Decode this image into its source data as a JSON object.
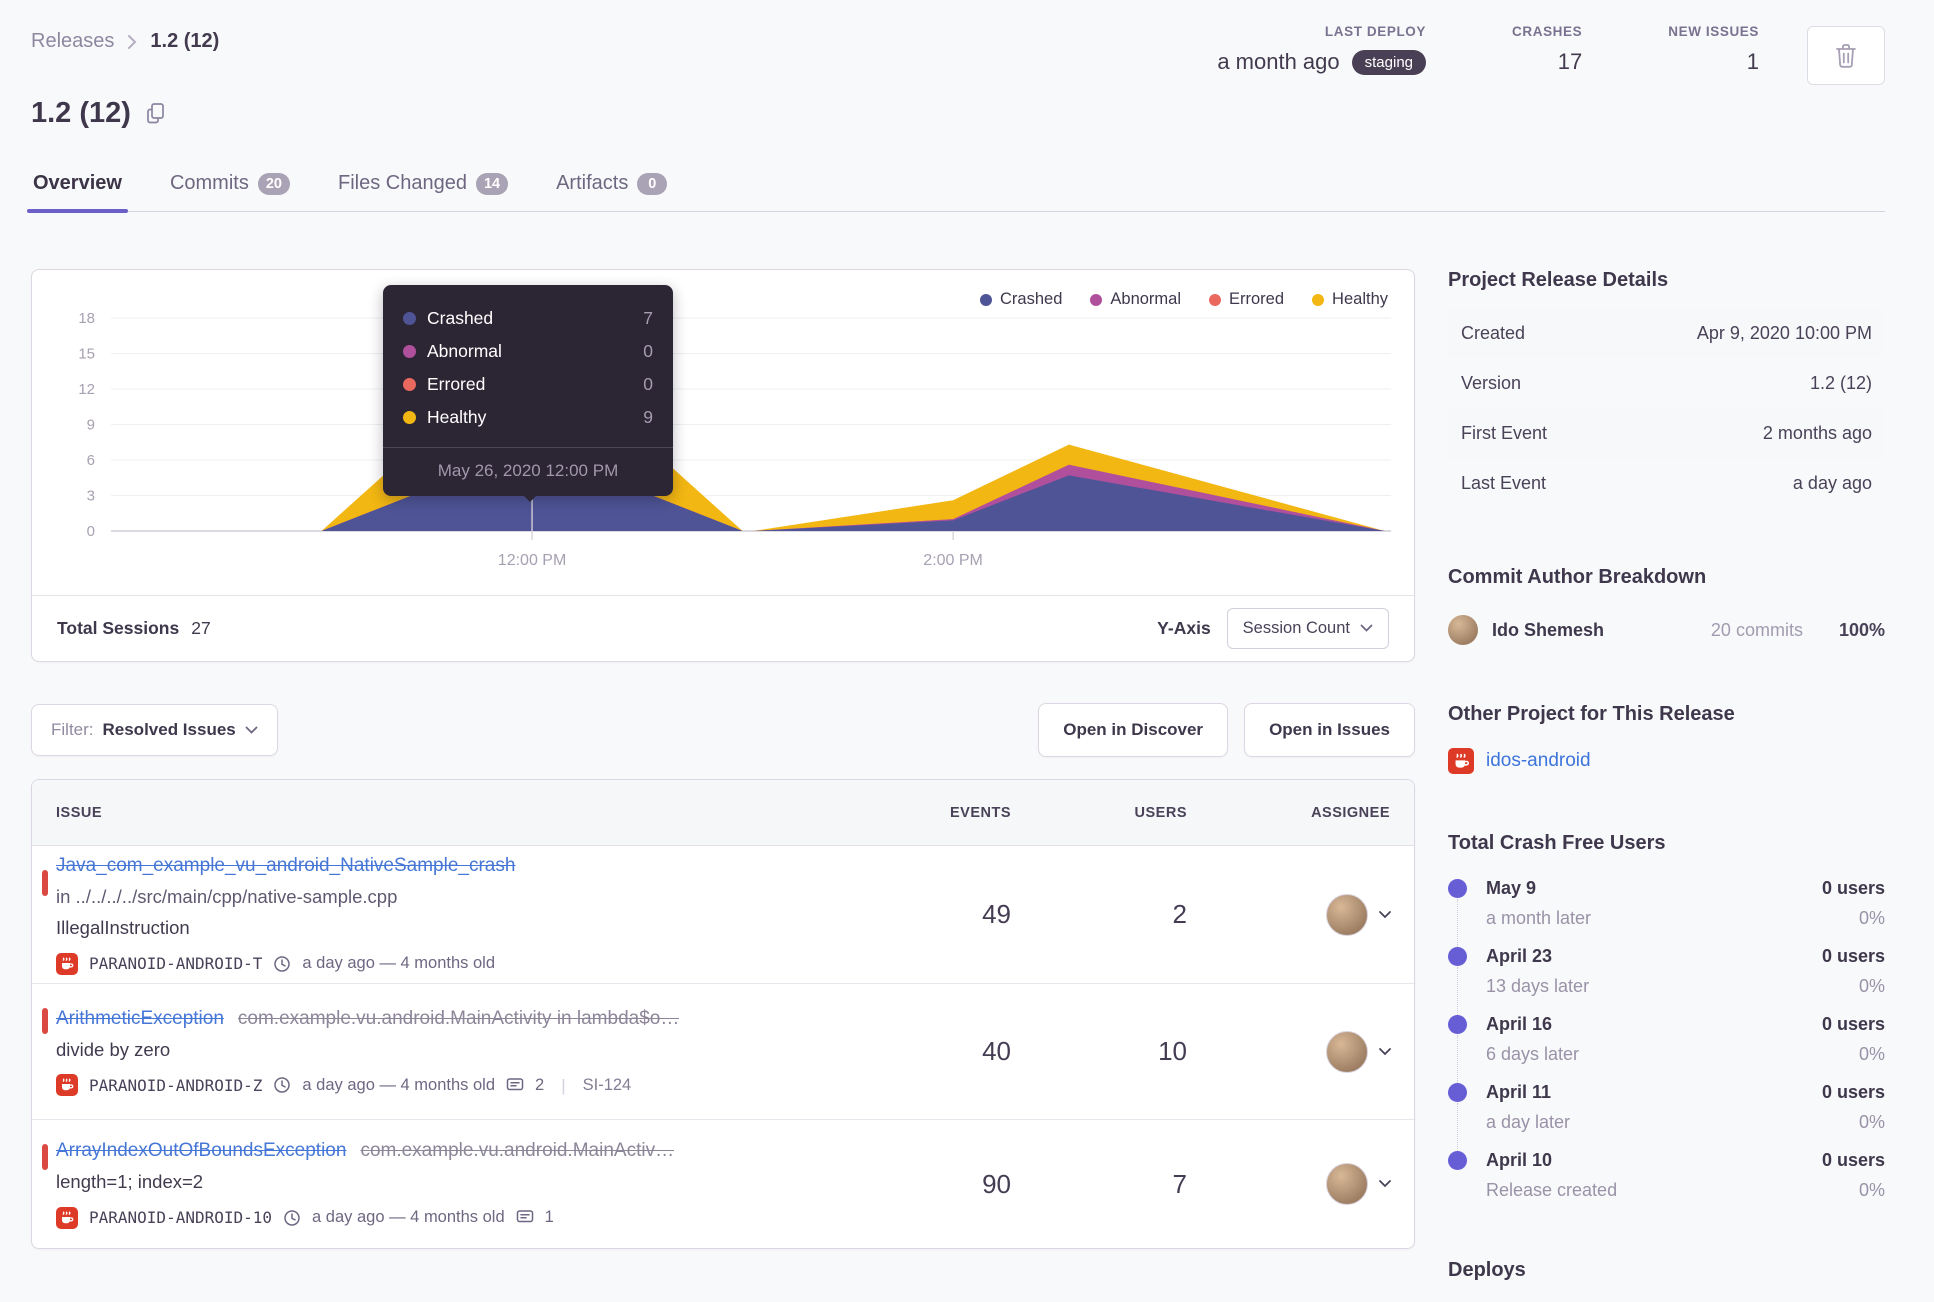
{
  "colors": {
    "accent": "#6c5fc7",
    "link": "#3d74db",
    "danger": "#db4a42",
    "staging_badge_bg": "#4a4055"
  },
  "breadcrumb": {
    "parent": "Releases",
    "current": "1.2 (12)"
  },
  "header_stats": {
    "last_deploy": {
      "label": "LAST DEPLOY",
      "value": "a month ago",
      "badge": "staging"
    },
    "crashes": {
      "label": "CRASHES",
      "value": "17"
    },
    "new_issues": {
      "label": "NEW ISSUES",
      "value": "1"
    }
  },
  "page_title": "1.2 (12)",
  "tabs": [
    {
      "label": "Overview",
      "active": true
    },
    {
      "label": "Commits",
      "badge": "20"
    },
    {
      "label": "Files Changed",
      "badge": "14"
    },
    {
      "label": "Artifacts",
      "badge": "0"
    }
  ],
  "chart_card": {
    "tooltip": {
      "rows": [
        {
          "label": "Crashed",
          "value": "7"
        },
        {
          "label": "Abnormal",
          "value": "0"
        },
        {
          "label": "Errored",
          "value": "0"
        },
        {
          "label": "Healthy",
          "value": "9"
        }
      ],
      "footer": "May 26, 2020 12:00 PM"
    },
    "footer": {
      "total_sessions_label": "Total Sessions",
      "total_sessions_value": "27",
      "y_axis_label": "Y-Axis",
      "y_axis_value": "Session Count"
    }
  },
  "chart_data": {
    "type": "area",
    "stacked": true,
    "title": "Release sessions over time",
    "x_unit": "hour_of_day",
    "x_range": [
      10.0,
      16.08
    ],
    "x_ticks": [
      {
        "pos": 12,
        "label": "12:00 PM"
      },
      {
        "pos": 14,
        "label": "2:00 PM"
      }
    ],
    "ylim": [
      0,
      19.5
    ],
    "y_ticks": [
      0,
      3,
      6,
      9,
      12,
      15,
      18
    ],
    "legend_position": "top-right",
    "grid": true,
    "total_sessions": 27,
    "x": [
      11.0,
      12.0,
      13.0,
      13.05,
      14.0,
      14.55,
      16.05
    ],
    "series": [
      {
        "name": "Crashed",
        "color": "#4e5496",
        "values": [
          0,
          7,
          0,
          0,
          0.9,
          4.7,
          0
        ]
      },
      {
        "name": "Abnormal",
        "color": "#b0509c",
        "values": [
          0,
          0,
          0,
          0,
          0.1,
          0.9,
          0
        ]
      },
      {
        "name": "Errored",
        "color": "#e9695f",
        "values": [
          0,
          0,
          0,
          0,
          0,
          0,
          0
        ]
      },
      {
        "name": "Healthy",
        "color": "#f2b712",
        "values": [
          0,
          9,
          0,
          0,
          1.6,
          1.7,
          0
        ]
      }
    ],
    "selected_point": {
      "x": 12,
      "label": "May 26, 2020 12:00 PM",
      "crashed": 7,
      "abnormal": 0,
      "errored": 0,
      "healthy": 9
    }
  },
  "filter_bar": {
    "filter_label": "Filter:",
    "filter_value": "Resolved Issues",
    "open_discover": "Open in Discover",
    "open_issues": "Open in Issues"
  },
  "issues_table": {
    "columns": {
      "issue": "ISSUE",
      "events": "EVENTS",
      "users": "USERS",
      "assignee": "ASSIGNEE"
    },
    "rows": [
      {
        "title": "Java_com_example_vu_android_NativeSample_crash",
        "location": "in ../../../../src/main/cpp/native-sample.cpp",
        "message": "IllegalInstruction",
        "project": "PARANOID-ANDROID-T",
        "age": "a day ago — 4 months old",
        "events": "49",
        "users": "2"
      },
      {
        "title": "ArithmeticException",
        "culprit": "com.example.vu.android.MainActivity in lambda$o…",
        "message": "divide by zero",
        "project": "PARANOID-ANDROID-Z",
        "age": "a day ago — 4 months old",
        "comments": "2",
        "annotation": "SI-124",
        "events": "40",
        "users": "10"
      },
      {
        "title": "ArrayIndexOutOfBoundsException",
        "culprit": "com.example.vu.android.MainActiv…",
        "message": "length=1; index=2",
        "project": "PARANOID-ANDROID-10",
        "age": "a day ago — 4 months old",
        "comments": "1",
        "events": "90",
        "users": "7"
      }
    ]
  },
  "sidebar": {
    "release_details": {
      "title": "Project Release Details",
      "rows": [
        {
          "label": "Created",
          "value": "Apr 9, 2020 10:00 PM"
        },
        {
          "label": "Version",
          "value": "1.2 (12)"
        },
        {
          "label": "First Event",
          "value": "2 months ago"
        },
        {
          "label": "Last Event",
          "value": "a day ago"
        }
      ]
    },
    "commit_authors": {
      "title": "Commit Author Breakdown",
      "authors": [
        {
          "name": "Ido Shemesh",
          "commits": "20 commits",
          "percent": "100%"
        }
      ]
    },
    "other_project": {
      "title": "Other Project for This Release",
      "project": "idos-android"
    },
    "crash_free": {
      "title": "Total Crash Free Users",
      "items": [
        {
          "date": "May 9",
          "sub": "a month later",
          "users": "0 users",
          "percent": "0%"
        },
        {
          "date": "April 23",
          "sub": "13 days later",
          "users": "0 users",
          "percent": "0%"
        },
        {
          "date": "April 16",
          "sub": "6 days later",
          "users": "0 users",
          "percent": "0%"
        },
        {
          "date": "April 11",
          "sub": "a day later",
          "users": "0 users",
          "percent": "0%"
        },
        {
          "date": "April 10",
          "sub": "Release created",
          "users": "0 users",
          "percent": "0%"
        }
      ]
    },
    "deploys_title": "Deploys"
  }
}
